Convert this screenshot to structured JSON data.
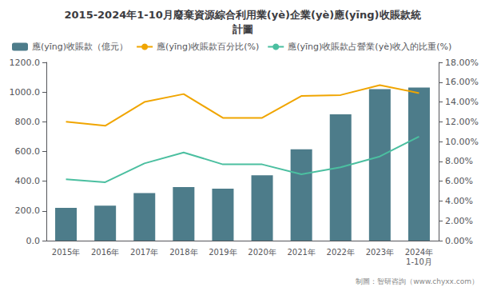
{
  "chart_data": {
    "type": "bar",
    "title": "2015-2024年1-10月廢棄資源綜合利用業(yè)企業(yè)應(yīng)收賬款統\n計圖",
    "categories": [
      "2015年",
      "2016年",
      "2017年",
      "2018年",
      "2019年",
      "2020年",
      "2021年",
      "2022年",
      "2023年",
      "2024年\n1-10月"
    ],
    "series": [
      {
        "name": "應(yīng)收賬款（億元）",
        "type": "bar",
        "color": "#4d7c8a",
        "axis": "y",
        "values": [
          220,
          235,
          320,
          360,
          350,
          440,
          615,
          850,
          1020,
          1030
        ]
      },
      {
        "name": "應(yīng)收賬款百分比(%)",
        "type": "line",
        "color": "#f0a500",
        "axis": "y2",
        "values": [
          12.0,
          11.6,
          14.0,
          14.8,
          12.4,
          12.4,
          14.6,
          14.7,
          15.7,
          14.9
        ]
      },
      {
        "name": "應(yīng)收賬款占營業(yè)收入的比重(%)",
        "type": "line",
        "color": "#4bbfa0",
        "axis": "y2",
        "values": [
          6.2,
          5.9,
          7.8,
          8.9,
          7.7,
          7.7,
          6.7,
          7.4,
          8.5,
          10.5
        ]
      }
    ],
    "ylim": [
      0,
      1200
    ],
    "yticks": [
      {
        "value": 0,
        "label": "0.0"
      },
      {
        "value": 200,
        "label": "200.0"
      },
      {
        "value": 400,
        "label": "400.0"
      },
      {
        "value": 600,
        "label": "600.0"
      },
      {
        "value": 800,
        "label": "800.0"
      },
      {
        "value": 1000,
        "label": "1000.0"
      },
      {
        "value": 1200,
        "label": "1200.0"
      }
    ],
    "y2lim": [
      0,
      18
    ],
    "y2ticks": [
      {
        "value": 0,
        "label": "0.00%"
      },
      {
        "value": 2,
        "label": "2.00%"
      },
      {
        "value": 4,
        "label": "4.00%"
      },
      {
        "value": 6,
        "label": "6.00%"
      },
      {
        "value": 8,
        "label": "8.00%"
      },
      {
        "value": 10,
        "label": "10.00%"
      },
      {
        "value": 12,
        "label": "12.00%"
      },
      {
        "value": 14,
        "label": "14.00%"
      },
      {
        "value": 16,
        "label": "16.00%"
      },
      {
        "value": 18,
        "label": "18.00%"
      }
    ],
    "grid": false,
    "legend": "upper left",
    "annotations": [
      "制圖：智研咨詢（www.chyxx.com）"
    ]
  }
}
